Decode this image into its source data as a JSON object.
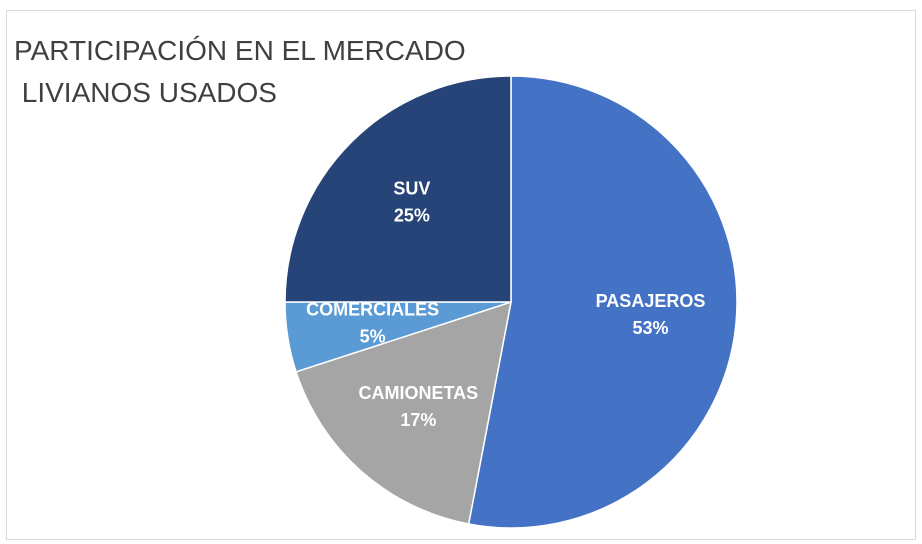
{
  "chart_data": {
    "type": "pie",
    "title": [
      "PARTICIPACIÓN EN EL MERCADO",
      " LIVIANOS USADOS"
    ],
    "categories": [
      "PASAJEROS",
      "CAMIONETAS",
      "COMERCIALES",
      "SUV"
    ],
    "values": [
      53,
      17,
      5,
      25
    ],
    "value_labels": [
      "53%",
      "17%",
      "5%",
      "25%"
    ],
    "colors": [
      "#4472c4",
      "#a5a5a5",
      "#5b9bd5",
      "#264478"
    ]
  }
}
